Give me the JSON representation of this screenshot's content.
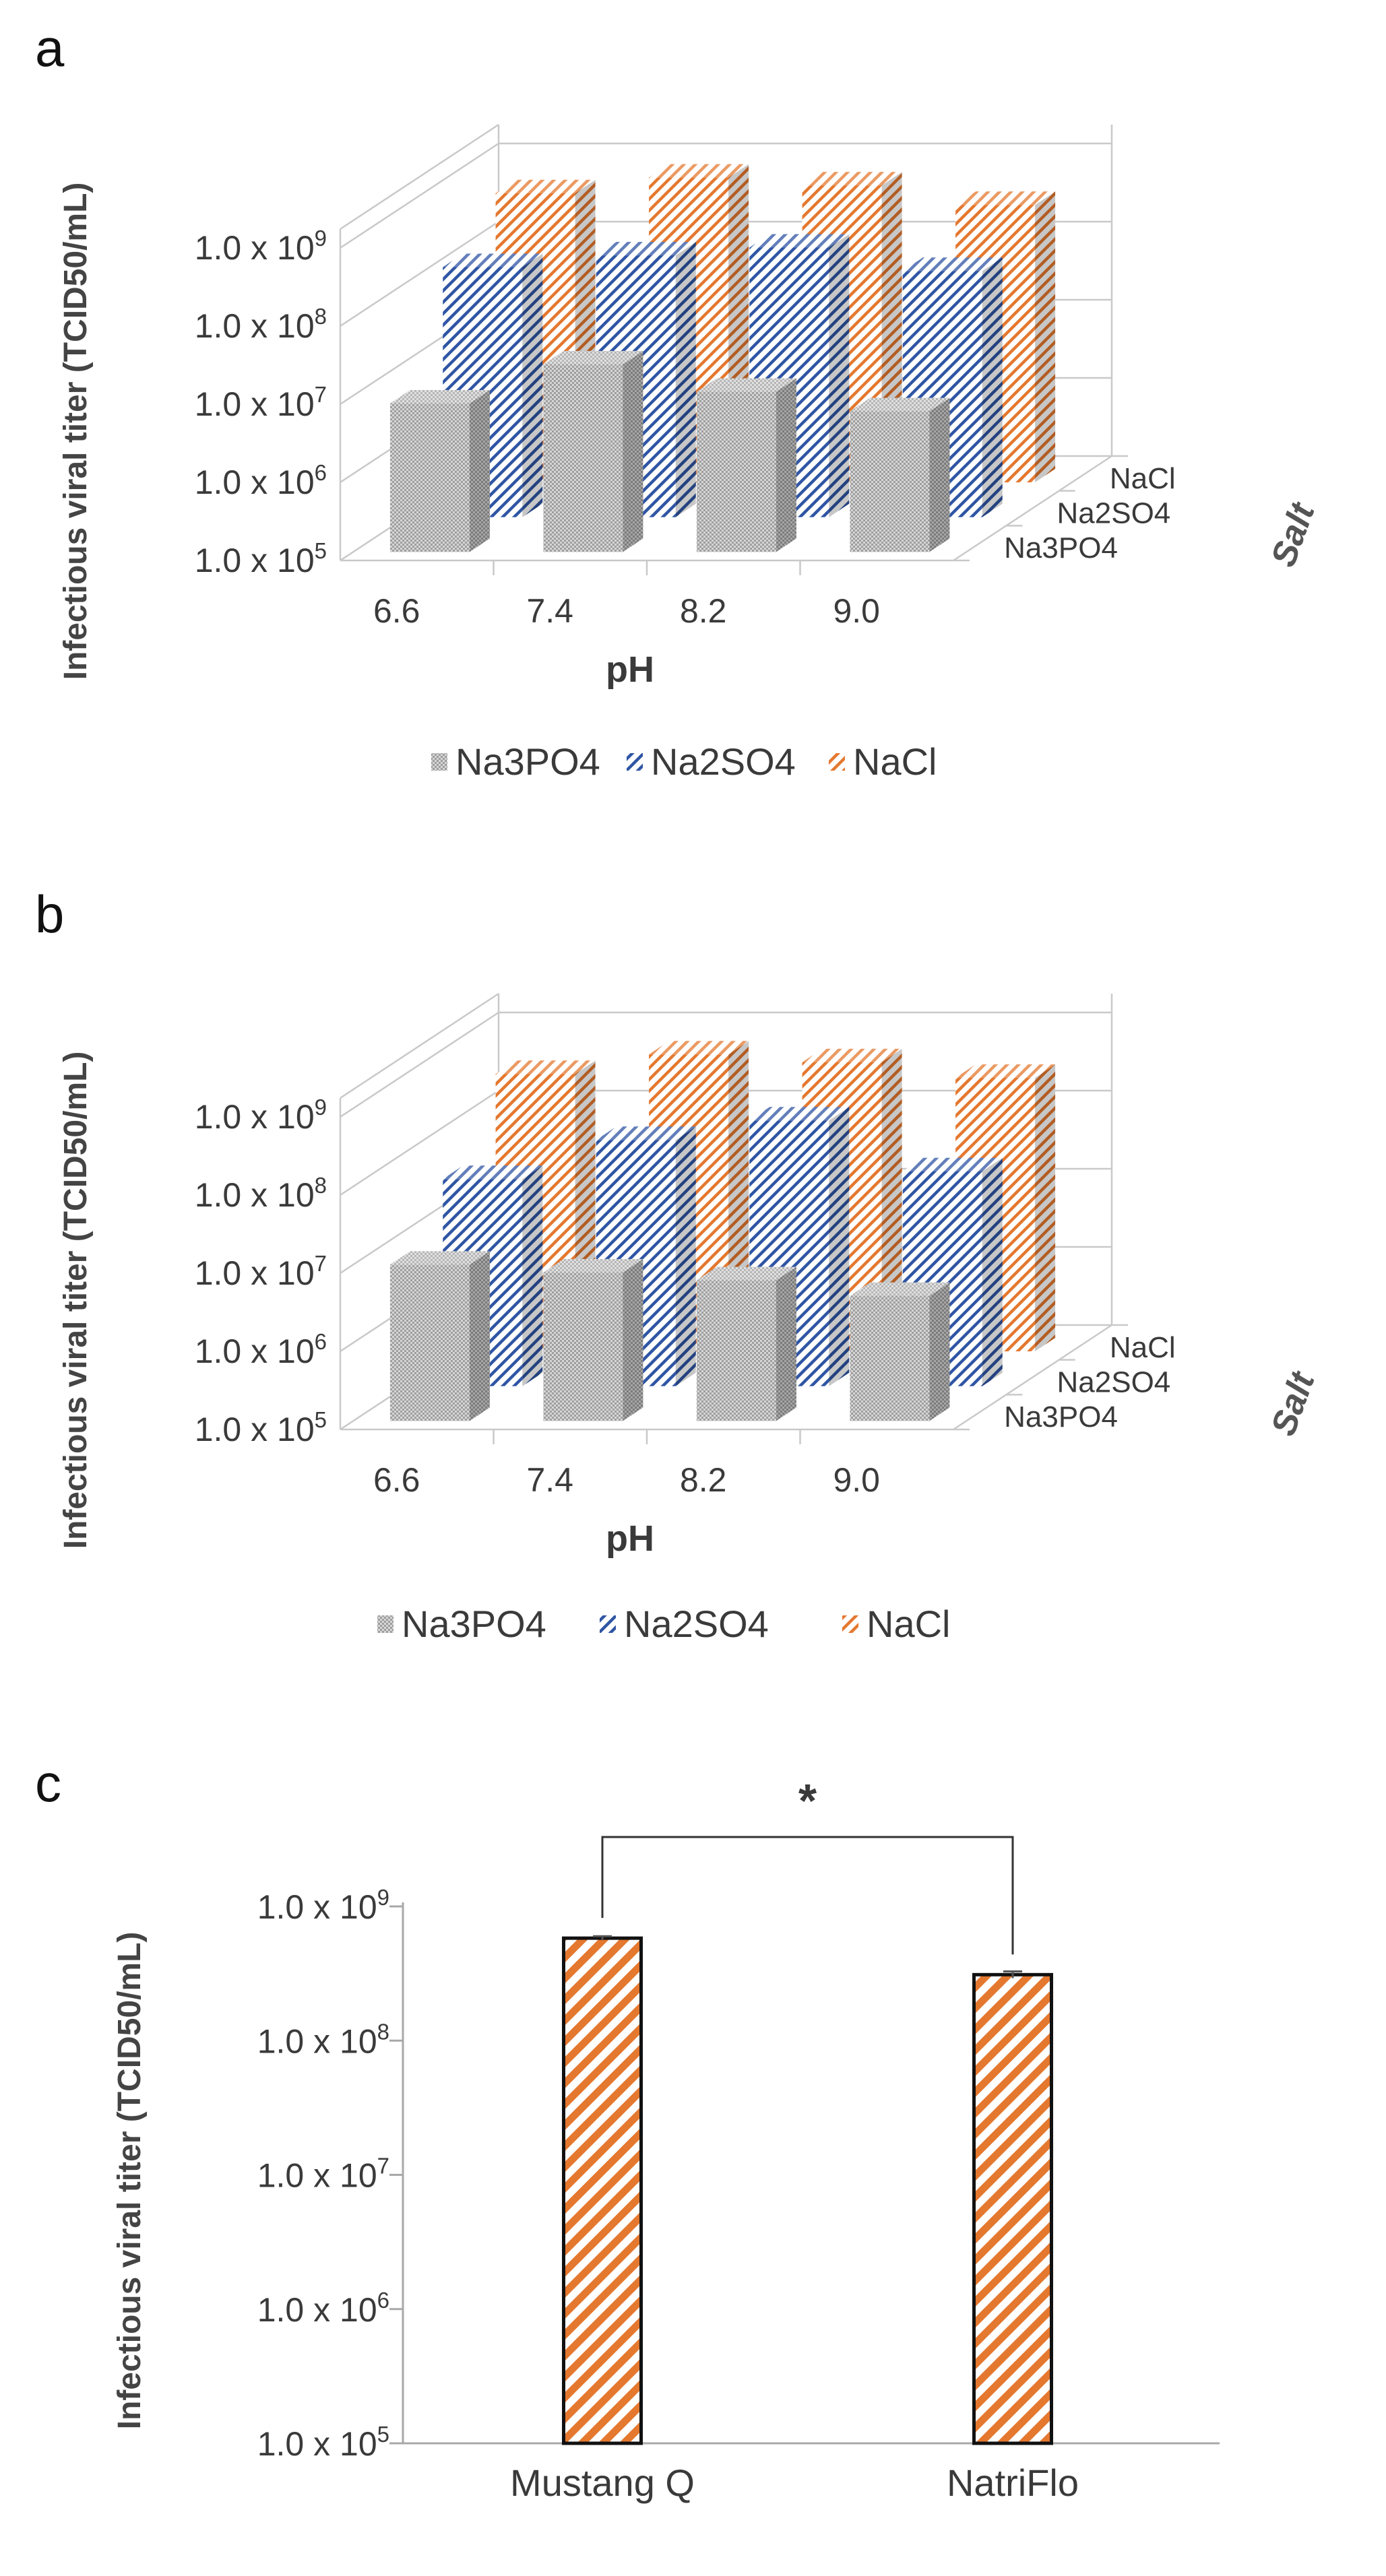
{
  "figure": {
    "panel_letters": [
      "a",
      "b",
      "c"
    ]
  },
  "colors": {
    "na3po4": "#9e9e9e",
    "na2so4": "#2f55a4",
    "nacl": "#e4782f",
    "grid": "#c9c9c9",
    "text": "#3a3a3a",
    "bar_outline": "#111111"
  },
  "chart_data": [
    {
      "panel": "a",
      "type": "bar",
      "style": "3d-clustered",
      "ylabel": "Infectious viral titer (TCID50/mL)",
      "xlabel": "pH",
      "zlabel": "Salt",
      "categories": [
        "6.6",
        "7.4",
        "8.2",
        "9.0"
      ],
      "yticks": [
        {
          "base": "1.0 x 10",
          "exp": "5"
        },
        {
          "base": "1.0 x 10",
          "exp": "6"
        },
        {
          "base": "1.0 x 10",
          "exp": "7"
        },
        {
          "base": "1.0 x 10",
          "exp": "8"
        },
        {
          "base": "1.0 x 10",
          "exp": "9"
        }
      ],
      "ylim_log10": [
        5,
        9
      ],
      "series": [
        {
          "name": "Na3PO4",
          "key": "na3po4",
          "log10_values": [
            6.9,
            7.4,
            7.05,
            6.8
          ]
        },
        {
          "name": "Na2SO4",
          "key": "na2so4",
          "log10_values": [
            8.2,
            8.35,
            8.45,
            8.15
          ]
        },
        {
          "name": "NaCl",
          "key": "nacl",
          "log10_values": [
            8.7,
            8.9,
            8.8,
            8.55
          ]
        }
      ],
      "depth_labels": [
        "Na3PO4",
        "Na2SO4",
        "NaCl"
      ],
      "legend": [
        "Na3PO4",
        "Na2SO4",
        "NaCl"
      ]
    },
    {
      "panel": "b",
      "type": "bar",
      "style": "3d-clustered",
      "ylabel": "Infectious viral titer (TCID50/mL)",
      "xlabel": "pH",
      "zlabel": "Salt",
      "categories": [
        "6.6",
        "7.4",
        "8.2",
        "9.0"
      ],
      "yticks": [
        {
          "base": "1.0 x 10",
          "exp": "5"
        },
        {
          "base": "1.0 x 10",
          "exp": "6"
        },
        {
          "base": "1.0 x 10",
          "exp": "7"
        },
        {
          "base": "1.0 x 10",
          "exp": "8"
        },
        {
          "base": "1.0 x 10",
          "exp": "9"
        }
      ],
      "ylim_log10": [
        5,
        9
      ],
      "series": [
        {
          "name": "Na3PO4",
          "key": "na3po4",
          "log10_values": [
            7.0,
            6.9,
            6.8,
            6.6
          ]
        },
        {
          "name": "Na2SO4",
          "key": "na2so4",
          "log10_values": [
            7.65,
            8.15,
            8.4,
            7.75
          ]
        },
        {
          "name": "NaCl",
          "key": "nacl",
          "log10_values": [
            8.55,
            8.8,
            8.7,
            8.5
          ]
        }
      ],
      "depth_labels": [
        "Na3PO4",
        "Na2SO4",
        "NaCl"
      ],
      "legend": [
        "Na3PO4",
        "Na2SO4",
        "NaCl"
      ]
    },
    {
      "panel": "c",
      "type": "bar",
      "style": "2d",
      "ylabel": "Infectious viral titer (TCID50/mL)",
      "categories": [
        "Mustang Q",
        "NatriFlo"
      ],
      "values": [
        580000000,
        310000000
      ],
      "error": [
        20000000,
        18000000
      ],
      "yticks": [
        {
          "base": "1.0 x 10",
          "exp": "5"
        },
        {
          "base": "1.0 x 10",
          "exp": "6"
        },
        {
          "base": "1.0 x 10",
          "exp": "7"
        },
        {
          "base": "1.0 x 10",
          "exp": "8"
        },
        {
          "base": "1.0 x 10",
          "exp": "9"
        }
      ],
      "ylim_log10": [
        5,
        9
      ],
      "significance": "*",
      "series_key": "nacl"
    }
  ]
}
